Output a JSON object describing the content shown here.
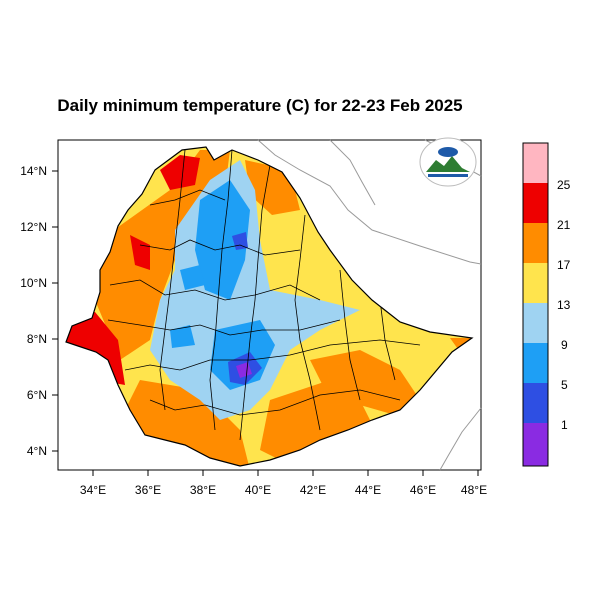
{
  "title": "Daily minimum temperature (C) for 22-23 Feb 2025",
  "map": {
    "x_ticks": [
      "34°E",
      "36°E",
      "38°E",
      "40°E",
      "42°E",
      "44°E",
      "46°E",
      "48°E"
    ],
    "y_ticks": [
      "14°N",
      "12°N",
      "10°N",
      "8°N",
      "6°N",
      "4°N"
    ],
    "lon_range": [
      33,
      48.2
    ],
    "lat_range": [
      3.2,
      15
    ]
  },
  "legend": {
    "levels": [
      "25",
      "21",
      "17",
      "13",
      "9",
      "5",
      "1"
    ],
    "colors": [
      "#ffb6c1",
      "#ee0000",
      "#ff8c00",
      "#ffe44d",
      "#9fd3f2",
      "#1e9ff5",
      "#2e4fe3",
      "#8a2be2"
    ]
  },
  "colors": {
    "warm": "#ff8c00",
    "hot": "#ee0000",
    "mild": "#ffe44d",
    "cool": "#9fd3f2",
    "cold": "#1e9ff5",
    "colder": "#2e4fe3",
    "coldest": "#8a2be2"
  }
}
